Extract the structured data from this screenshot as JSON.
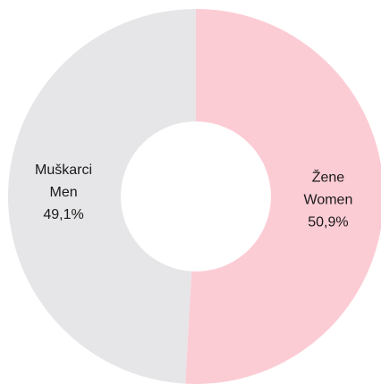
{
  "chart_data": {
    "type": "donut",
    "categories": [
      "Žene",
      "Muškarci"
    ],
    "translations": [
      "Women",
      "Men"
    ],
    "values": [
      50.9,
      49.1
    ],
    "value_labels": [
      "50,9%",
      "49,1%"
    ],
    "colors": [
      "#fcccd5",
      "#e6e6e8"
    ]
  }
}
